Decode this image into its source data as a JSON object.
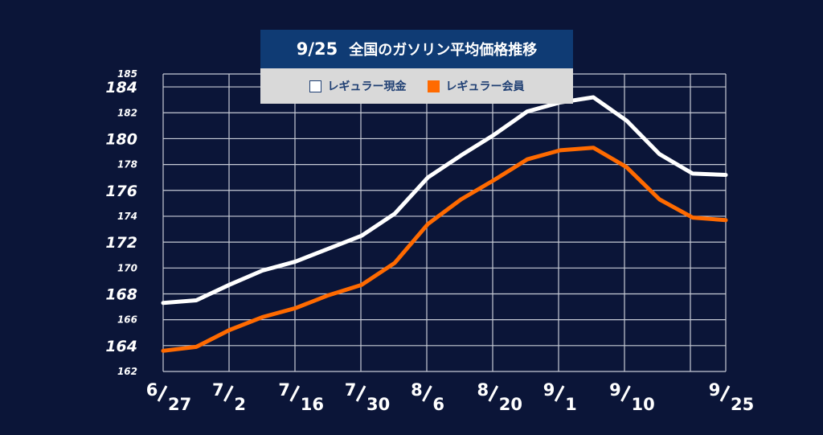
{
  "title": {
    "date": "9/25",
    "text": "全国のガソリン平均価格推移"
  },
  "legend": {
    "cash_label": "レギュラー現金",
    "member_label": "レギュラー会員"
  },
  "colors": {
    "background": "#0b1538",
    "grid": "#c7cbd6",
    "cash": "#ffffff",
    "member": "#ff6a00",
    "title_bg": "#0f3b74",
    "legend_bg": "#d9d9d9"
  },
  "chart_data": {
    "type": "line",
    "title": "9/25 全国のガソリン平均価格推移",
    "xlabel": "",
    "ylabel": "",
    "ylim": [
      162,
      185
    ],
    "grid": true,
    "legend_position": "top-center",
    "y_ticks": [
      162,
      164,
      166,
      168,
      170,
      172,
      174,
      176,
      178,
      180,
      182,
      184,
      185
    ],
    "y_ticks_large": [
      164,
      168,
      172,
      176,
      180,
      184
    ],
    "x_tick_labels": [
      {
        "index": 0,
        "num": "6",
        "den": "27"
      },
      {
        "index": 2,
        "num": "7",
        "den": "2"
      },
      {
        "index": 4,
        "num": "7",
        "den": "16"
      },
      {
        "index": 6,
        "num": "7",
        "den": "30"
      },
      {
        "index": 8,
        "num": "8",
        "den": "6"
      },
      {
        "index": 10,
        "num": "8",
        "den": "20"
      },
      {
        "index": 12,
        "num": "9",
        "den": "1"
      },
      {
        "index": 14,
        "num": "9",
        "den": "10"
      },
      {
        "index": 17,
        "num": "9",
        "den": "25"
      }
    ],
    "point_count": 18,
    "series": [
      {
        "name": "レギュラー現金",
        "color": "#ffffff",
        "values": [
          167.3,
          167.5,
          168.7,
          169.8,
          170.5,
          171.5,
          172.5,
          174.2,
          177.0,
          178.7,
          180.3,
          182.1,
          182.8,
          183.2,
          181.4,
          178.8,
          177.3,
          177.2
        ]
      },
      {
        "name": "レギュラー会員",
        "color": "#ff6a00",
        "values": [
          163.6,
          163.9,
          165.2,
          166.2,
          166.9,
          167.9,
          168.7,
          170.4,
          173.4,
          175.3,
          176.8,
          178.4,
          179.1,
          179.3,
          177.8,
          175.3,
          173.9,
          173.7
        ]
      }
    ]
  }
}
